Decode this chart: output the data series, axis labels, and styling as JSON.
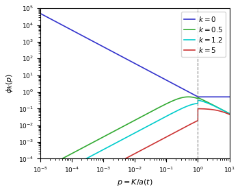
{
  "ylabel": "$\\phi_k(p)$",
  "xlabel": "$p = K/a(t)$",
  "xlim_log": [
    -5,
    1
  ],
  "ylim_log": [
    -4,
    5
  ],
  "vline_x": 1.0,
  "curves": [
    {
      "k": 0.0,
      "color": "#3333cc",
      "label": "$k = 0$"
    },
    {
      "k": 0.5,
      "color": "#33aa33",
      "label": "$k = 0.5$"
    },
    {
      "k": 1.2,
      "color": "#00cccc",
      "label": "$k = 1.2$"
    },
    {
      "k": 5.0,
      "color": "#cc3333",
      "label": "$k = 5$"
    }
  ],
  "legend_fontsize": 7.5,
  "tick_labelsize": 6.5,
  "label_fontsize": 8,
  "linewidth": 1.2
}
